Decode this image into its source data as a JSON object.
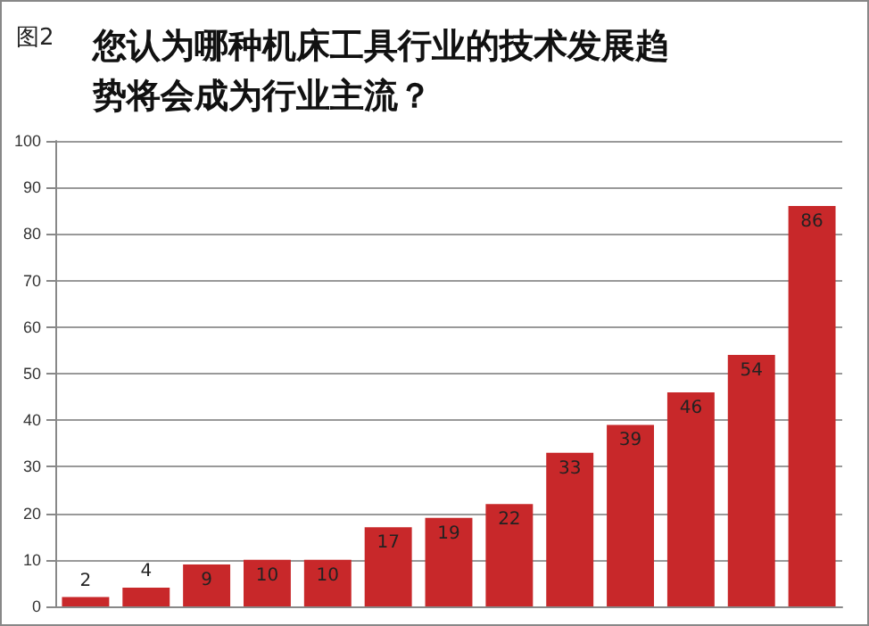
{
  "chart_data": {
    "type": "bar",
    "title": "您认为哪种机床工具行业的技术发展趋势将会成为行业主流？",
    "annotations": [
      "图2"
    ],
    "categories": [
      null,
      null,
      null,
      null,
      null,
      null,
      null,
      null,
      null,
      null,
      null,
      null,
      null
    ],
    "values": [
      2,
      4,
      9,
      10,
      10,
      17,
      19,
      22,
      33,
      39,
      46,
      54,
      86
    ],
    "color": "#c8282a",
    "ylim": [
      0,
      100
    ],
    "yticks": [
      0,
      10,
      20,
      30,
      40,
      50,
      60,
      70,
      80,
      90,
      100
    ],
    "grid": "y",
    "data_labels": true
  }
}
